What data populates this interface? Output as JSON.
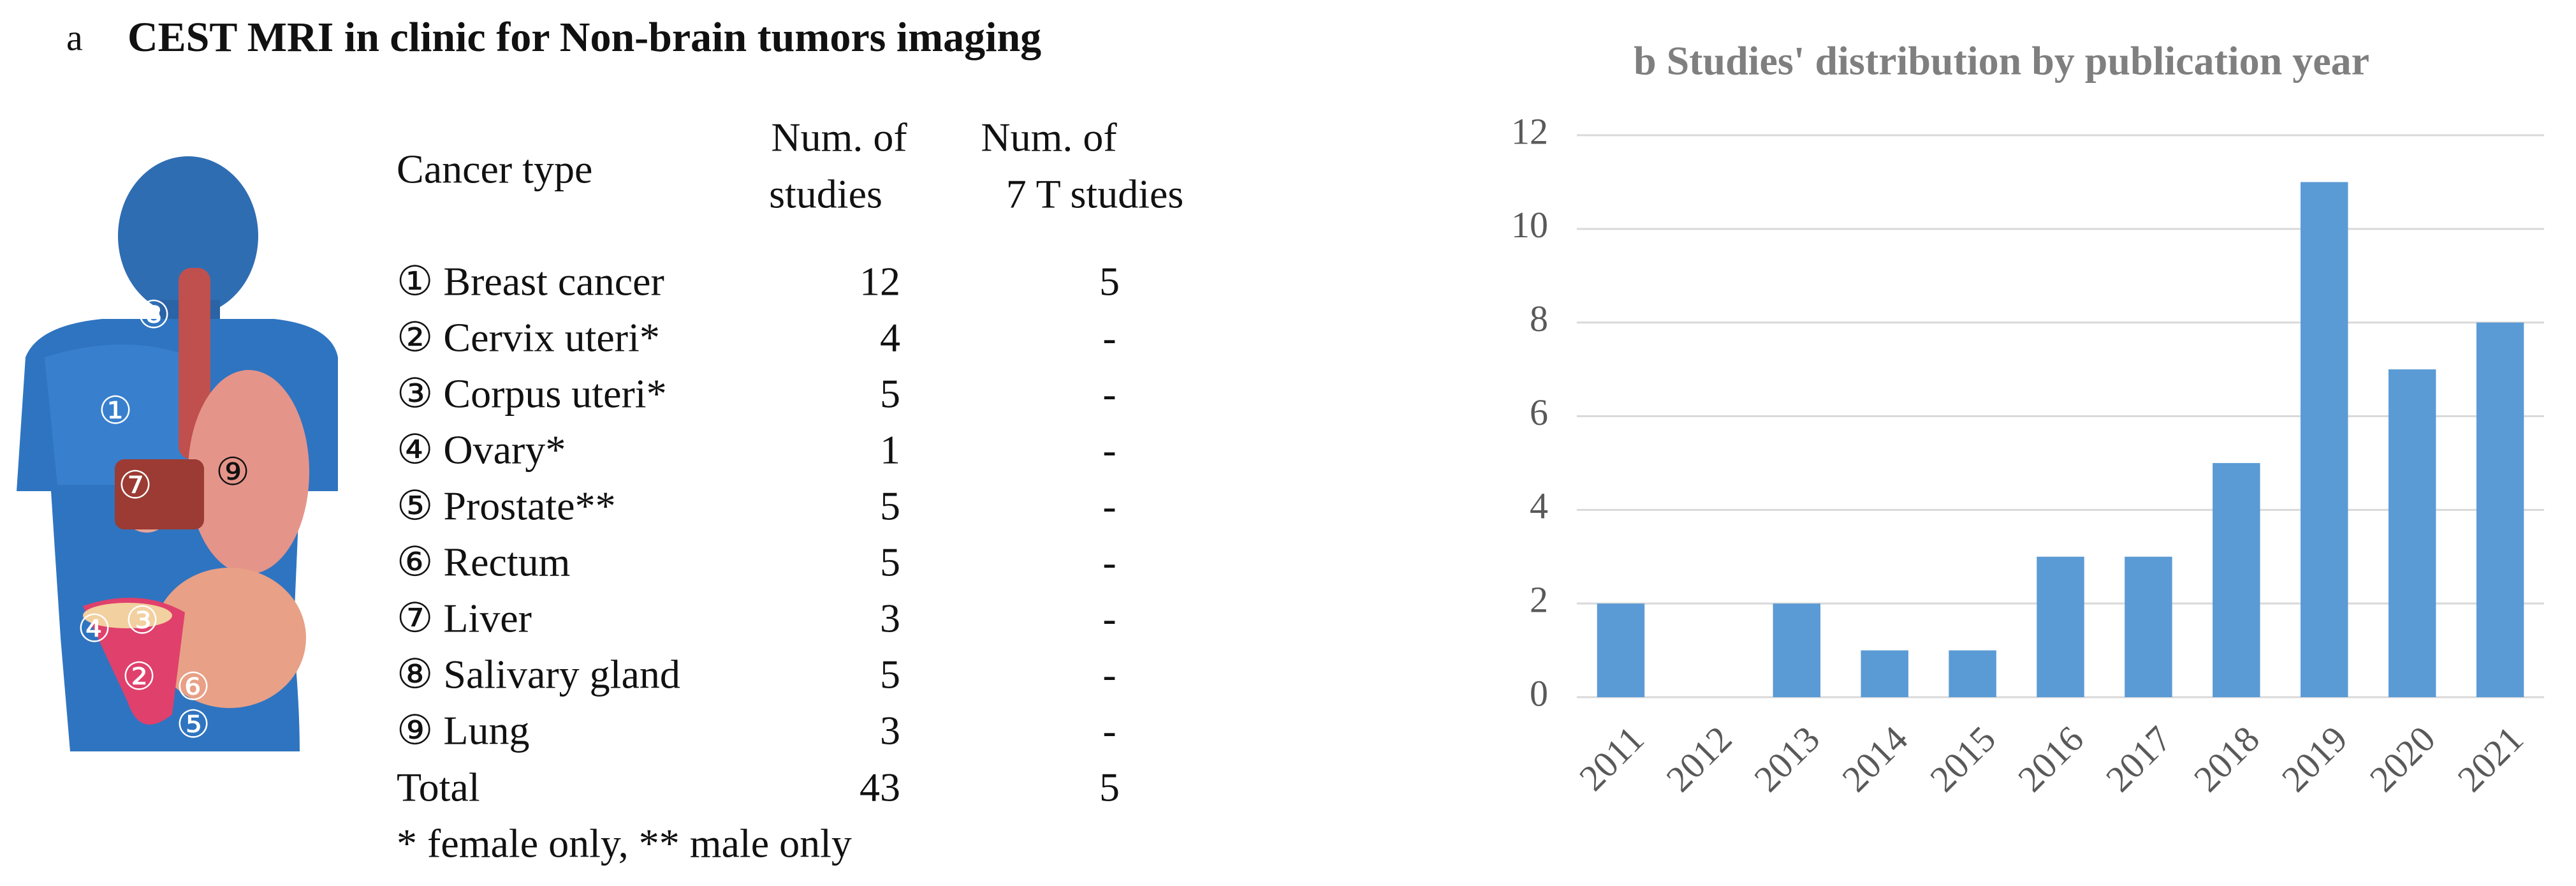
{
  "panel_a": {
    "label": "a",
    "title": "CEST MRI in clinic for Non-brain tumors imaging",
    "headers": [
      "Cancer type",
      [
        "Num. of",
        "studies"
      ],
      [
        "Num. of",
        "7 T studies"
      ]
    ],
    "rows": [
      [
        "① Breast cancer",
        12,
        5
      ],
      [
        "② Cervix uteri*",
        4,
        "-"
      ],
      [
        "③ Corpus uteri*",
        5,
        "-"
      ],
      [
        "④ Ovary*",
        1,
        "-"
      ],
      [
        "⑤ Prostate**",
        5,
        "-"
      ],
      [
        "⑥ Rectum",
        5,
        "-"
      ],
      [
        "⑦ Liver",
        3,
        "-"
      ],
      [
        "⑧ Salivary gland",
        5,
        "-"
      ],
      [
        "⑨ Lung",
        3,
        "-"
      ]
    ],
    "total": [
      "Total",
      43,
      5
    ],
    "footnote": "* female only, ** male only",
    "body_markers": [
      "⑧",
      "①",
      "⑦",
      "⑨",
      "④",
      "③",
      "②",
      "⑥",
      "⑤"
    ]
  },
  "chart_data": {
    "type": "bar",
    "title": "b Studies' distribution by publication year",
    "categories": [
      "2011",
      "2012",
      "2013",
      "2014",
      "2015",
      "2016",
      "2017",
      "2018",
      "2019",
      "2020",
      "2021"
    ],
    "values": [
      2,
      0,
      2,
      1,
      1,
      3,
      3,
      5,
      11,
      7,
      8
    ],
    "color": "#5b9bd5",
    "ylim": [
      0,
      12
    ],
    "yticks": [
      0,
      2,
      4,
      6,
      8,
      10,
      12
    ],
    "grid": true
  }
}
